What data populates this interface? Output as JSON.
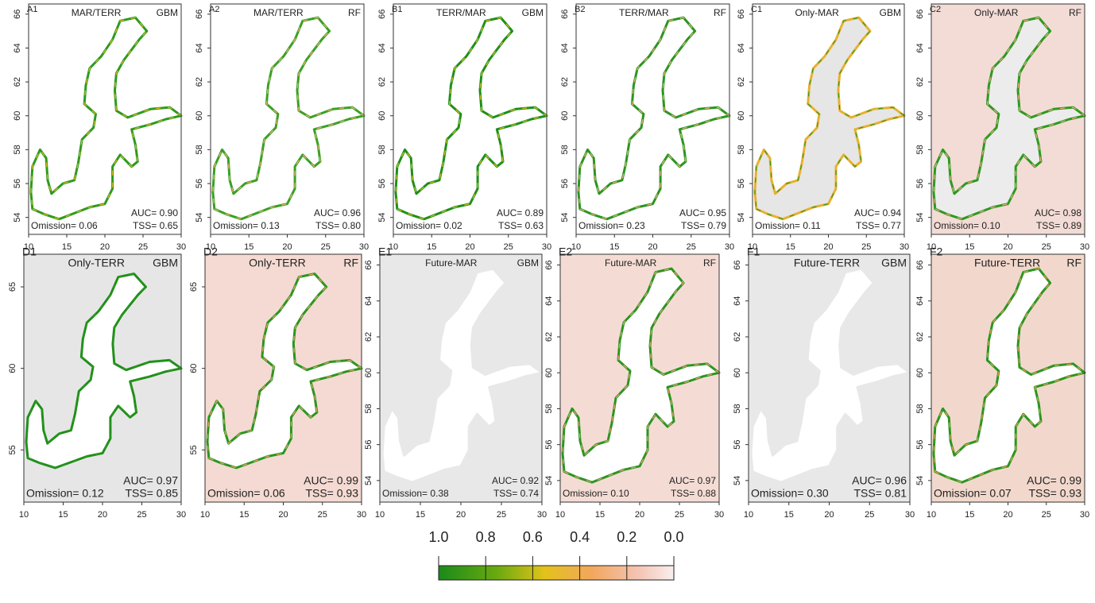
{
  "panels": [
    {
      "id": "A1",
      "title": "MAR/TERR",
      "model": "GBM",
      "auc": "AUC= 0.90",
      "tss": "TSS= 0.65",
      "omission": "Omission= 0.06",
      "xlim": [
        10,
        30
      ],
      "xticks": [
        10,
        15,
        20,
        25,
        30
      ],
      "ylim": [
        53,
        66.6
      ],
      "yticks": [
        54,
        56,
        58,
        60,
        62,
        64,
        66
      ]
    },
    {
      "id": "A2",
      "title": "MAR/TERR",
      "model": "RF",
      "auc": "AUC= 0.96",
      "tss": "TSS= 0.80",
      "omission": "Omission= 0.13",
      "xlim": [
        10,
        30
      ],
      "xticks": [
        10,
        15,
        20,
        25,
        30
      ],
      "ylim": [
        53,
        66.6
      ],
      "yticks": [
        54,
        56,
        58,
        60,
        62,
        64,
        66
      ]
    },
    {
      "id": "B1",
      "title": "TERR/MAR",
      "model": "GBM",
      "auc": "AUC= 0.89",
      "tss": "TSS= 0.63",
      "omission": "Omission= 0.02",
      "xlim": [
        10,
        30
      ],
      "xticks": [
        10,
        15,
        20,
        25,
        30
      ],
      "ylim": [
        53,
        66.6
      ],
      "yticks": [
        54,
        56,
        58,
        60,
        62,
        64,
        66
      ]
    },
    {
      "id": "B2",
      "title": "TERR/MAR",
      "model": "RF",
      "auc": "AUC= 0.95",
      "tss": "TSS= 0.79",
      "omission": "Omission= 0.23",
      "xlim": [
        10,
        30
      ],
      "xticks": [
        10,
        15,
        20,
        25,
        30
      ],
      "ylim": [
        53,
        66.6
      ],
      "yticks": [
        54,
        56,
        58,
        60,
        62,
        64,
        66
      ]
    },
    {
      "id": "C1",
      "title": "Only-MAR",
      "model": "GBM",
      "auc": "AUC= 0.94",
      "tss": "TSS= 0.77",
      "omission": "Omission= 0.11",
      "xlim": [
        10,
        30
      ],
      "xticks": [
        10,
        15,
        20,
        25,
        30
      ],
      "ylim": [
        53,
        66.6
      ],
      "yticks": [
        54,
        56,
        58,
        60,
        62,
        64,
        66
      ]
    },
    {
      "id": "C2",
      "title": "Only-MAR",
      "model": "RF",
      "auc": "AUC= 0.98",
      "tss": "TSS= 0.89",
      "omission": "Omission= 0.10",
      "xlim": [
        10,
        30
      ],
      "xticks": [
        10,
        15,
        20,
        25,
        30
      ],
      "ylim": [
        53,
        66.6
      ],
      "yticks": [
        54,
        56,
        58,
        60,
        62,
        64,
        66
      ]
    },
    {
      "id": "D1",
      "title": "Only-TERR",
      "model": "GBM",
      "auc": "AUC= 0.97",
      "tss": "TSS= 0.85",
      "omission": "Omission= 0.12",
      "xlim": [
        10,
        30
      ],
      "xticks": [
        10,
        15,
        20,
        25,
        30
      ],
      "ylim": [
        51.8,
        67
      ],
      "yticks": [
        55,
        60,
        65
      ]
    },
    {
      "id": "D2",
      "title": "Only-TERR",
      "model": "RF",
      "auc": "AUC= 0.99",
      "tss": "TSS= 0.93",
      "omission": "Omission= 0.06",
      "xlim": [
        10,
        30
      ],
      "xticks": [
        10,
        15,
        20,
        25,
        30
      ],
      "ylim": [
        51.8,
        67
      ],
      "yticks": [
        55,
        60,
        65
      ]
    },
    {
      "id": "E1",
      "title": "Future-MAR",
      "model": "GBM",
      "auc": "AUC= 0.92",
      "tss": "TSS= 0.74",
      "omission": "Omission= 0.38",
      "xlim": [
        10,
        30
      ],
      "xticks": [
        10,
        15,
        20,
        25,
        30
      ],
      "ylim": [
        52.8,
        66.6
      ],
      "yticks": [
        54,
        56,
        58,
        60,
        62,
        64,
        66
      ]
    },
    {
      "id": "E2",
      "title": "Future-MAR",
      "model": "RF",
      "auc": "AUC= 0.97",
      "tss": "TSS= 0.88",
      "omission": "Omission= 0.10",
      "xlim": [
        10,
        30
      ],
      "xticks": [
        10,
        15,
        20,
        25,
        30
      ],
      "ylim": [
        52.8,
        66.6
      ],
      "yticks": [
        54,
        56,
        58,
        60,
        62,
        64,
        66
      ]
    },
    {
      "id": "F1",
      "title": "Future-TERR",
      "model": "GBM",
      "auc": "AUC= 0.96",
      "tss": "TSS= 0.81",
      "omission": "Omission= 0.30",
      "xlim": [
        10,
        30
      ],
      "xticks": [
        10,
        15,
        20,
        25,
        30
      ],
      "ylim": [
        52.8,
        66.6
      ],
      "yticks": [
        54,
        56,
        58,
        60,
        62,
        64,
        66
      ]
    },
    {
      "id": "F2",
      "title": "Future-TERR",
      "model": "RF",
      "auc": "AUC= 0.99",
      "tss": "TSS= 0.93",
      "omission": "Omission= 0.07",
      "xlim": [
        10,
        30
      ],
      "xticks": [
        10,
        15,
        20,
        25,
        30
      ],
      "ylim": [
        52.8,
        66.6
      ],
      "yticks": [
        54,
        56,
        58,
        60,
        62,
        64,
        66
      ]
    }
  ],
  "colorbar": {
    "lim": [
      1,
      0
    ],
    "ticks": [
      {
        "value": 1,
        "label": "1.0"
      },
      {
        "value": 0.8,
        "label": "0.8"
      },
      {
        "value": 0.6,
        "label": "0.6"
      },
      {
        "value": 0.4,
        "label": "0.4"
      },
      {
        "value": 0.2,
        "label": "0.2"
      },
      {
        "value": 0,
        "label": "0.0"
      }
    ]
  }
}
